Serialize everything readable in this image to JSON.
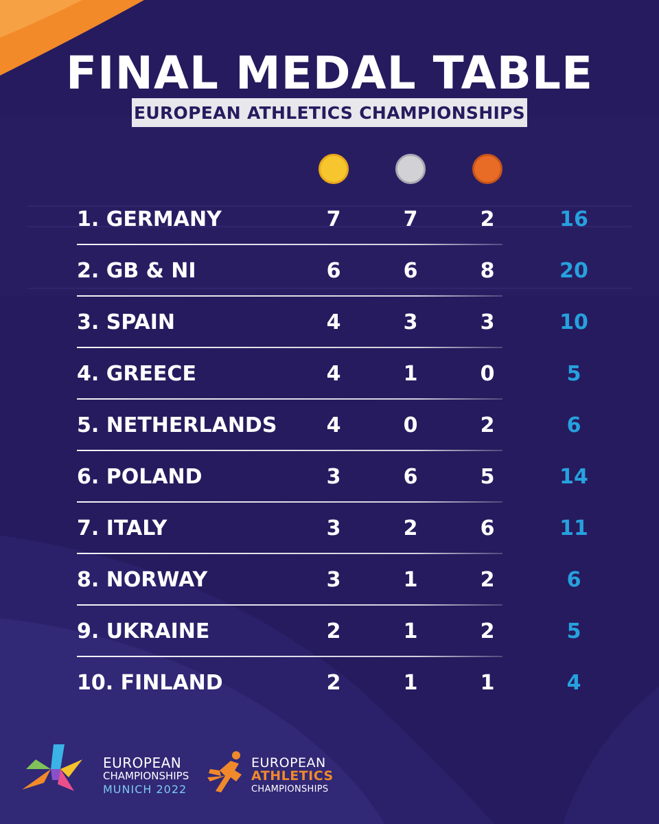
{
  "header": {
    "title": "FINAL MEDAL TABLE",
    "subtitle": "EUROPEAN ATHLETICS CHAMPIONSHIPS"
  },
  "medal_icons": [
    {
      "name": "gold-medal-icon",
      "color": "#f7c52d"
    },
    {
      "name": "silver-medal-icon",
      "color": "#d2d2d6"
    },
    {
      "name": "bronze-medal-icon",
      "color": "#e86c25"
    }
  ],
  "colors": {
    "background": "#261b5e",
    "total": "#26a1de",
    "accent_orange": "#f0892b"
  },
  "table": {
    "rows": [
      {
        "country": "1. GERMANY",
        "gold": "7",
        "silver": "7",
        "bronze": "2",
        "total": "16"
      },
      {
        "country": "2. GB & NI",
        "gold": "6",
        "silver": "6",
        "bronze": "8",
        "total": "20"
      },
      {
        "country": "3. SPAIN",
        "gold": "4",
        "silver": "3",
        "bronze": "3",
        "total": "10"
      },
      {
        "country": "4. GREECE",
        "gold": "4",
        "silver": "1",
        "bronze": "0",
        "total": "5"
      },
      {
        "country": "5. NETHERLANDS",
        "gold": "4",
        "silver": "0",
        "bronze": "2",
        "total": "6"
      },
      {
        "country": "6. POLAND",
        "gold": "3",
        "silver": "6",
        "bronze": "5",
        "total": "14"
      },
      {
        "country": "7. ITALY",
        "gold": "3",
        "silver": "2",
        "bronze": "6",
        "total": "11"
      },
      {
        "country": "8. NORWAY",
        "gold": "3",
        "silver": "1",
        "bronze": "2",
        "total": "6"
      },
      {
        "country": "9. UKRAINE",
        "gold": "2",
        "silver": "1",
        "bronze": "2",
        "total": "5"
      },
      {
        "country": "10. FINLAND",
        "gold": "2",
        "silver": "1",
        "bronze": "1",
        "total": "4"
      }
    ]
  },
  "footer": {
    "logo1": {
      "line1": "EUROPEAN",
      "line2": "CHAMPIONSHIPS",
      "line3": "MUNICH 2022"
    },
    "logo2": {
      "line1": "EUROPEAN",
      "line2": "ATHLETICS",
      "line3": "CHAMPIONSHIPS"
    }
  }
}
